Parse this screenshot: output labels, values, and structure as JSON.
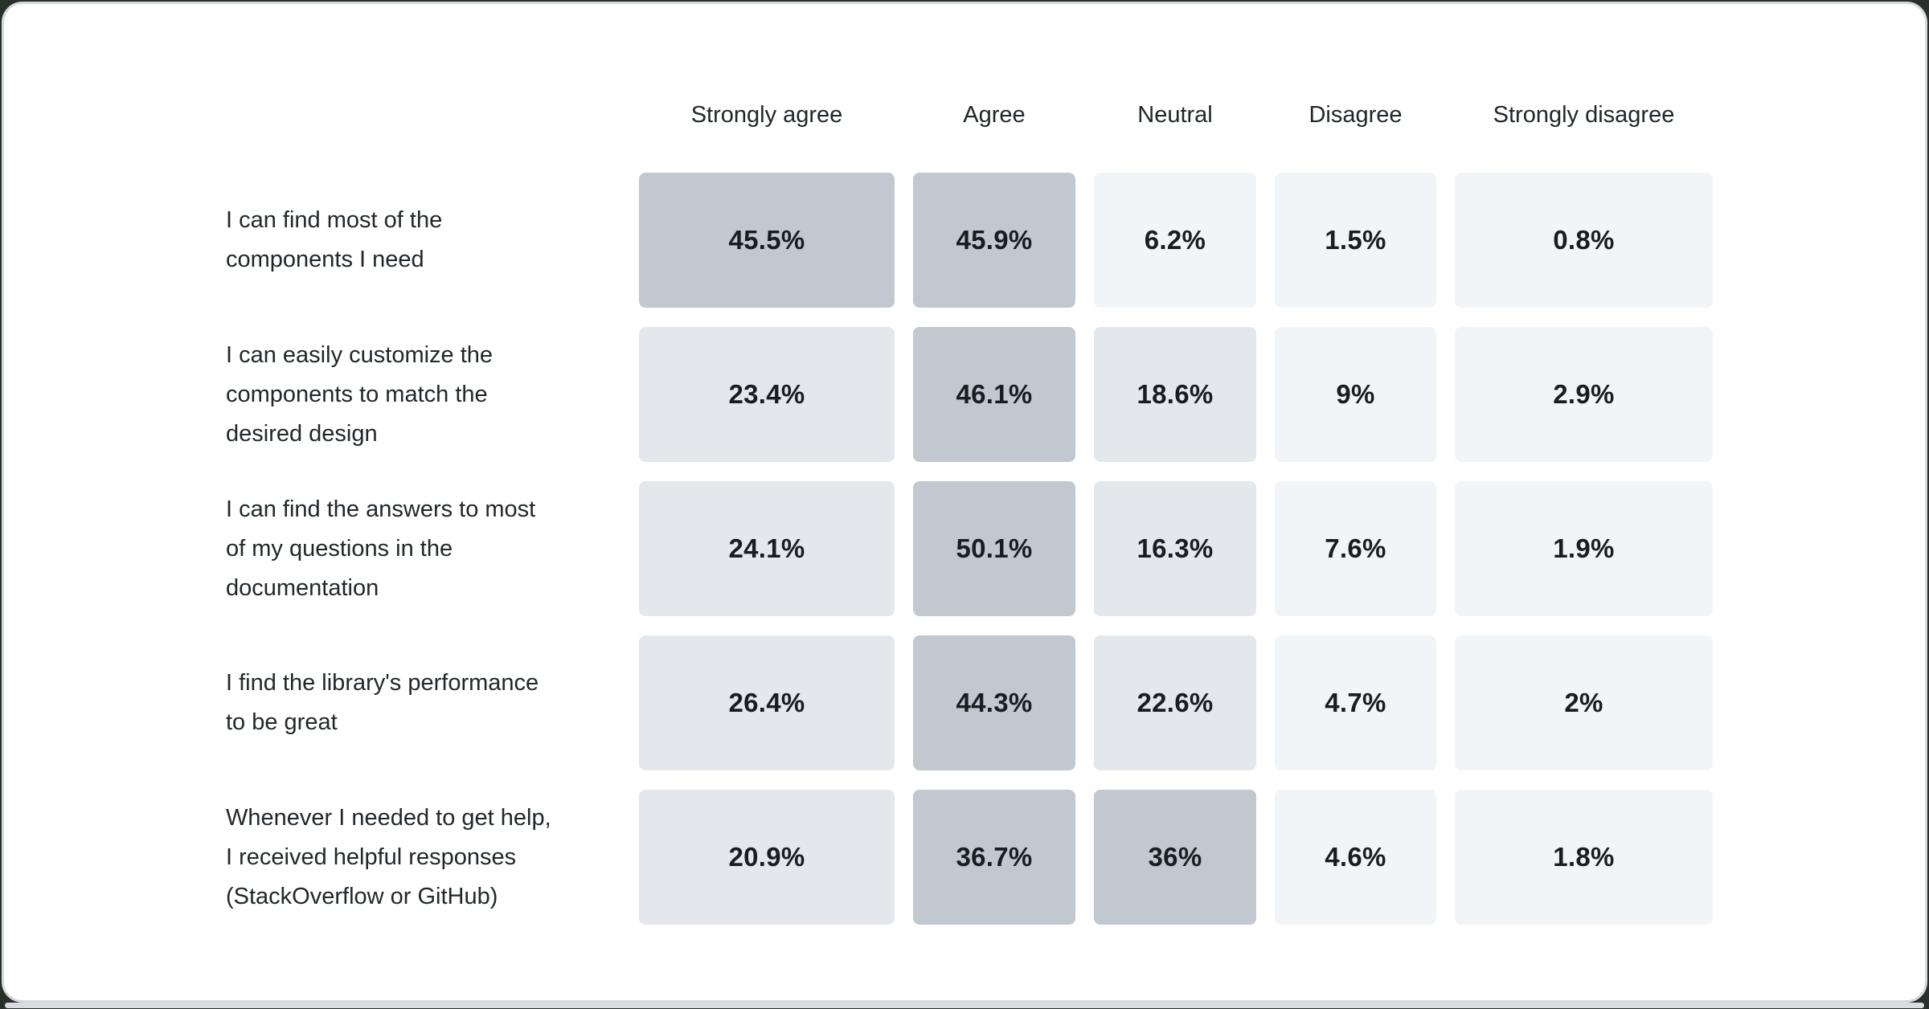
{
  "page": {
    "background_color": "#273029",
    "card_color": "#ffffff",
    "card_border_color": "#d6dadd",
    "scrollbar_color": "#d9dce0"
  },
  "chart_data": {
    "type": "heatmap",
    "title": "",
    "columns": [
      "Strongly agree",
      "Agree",
      "Neutral",
      "Disagree",
      "Strongly disagree"
    ],
    "rows": [
      {
        "label": "I can find most of the components I need",
        "label_lines": [
          "I can find most of the",
          "components I need"
        ],
        "values": [
          45.5,
          45.9,
          6.2,
          1.5,
          0.8
        ],
        "display": [
          "45.5%",
          "45.9%",
          "6.2%",
          "1.5%",
          "0.8%"
        ]
      },
      {
        "label": "I can easily customize the components to match the desired design",
        "label_lines": [
          "I can easily customize the",
          "components to match the",
          "desired design"
        ],
        "values": [
          23.4,
          46.1,
          18.6,
          9,
          2.9
        ],
        "display": [
          "23.4%",
          "46.1%",
          "18.6%",
          "9%",
          "2.9%"
        ]
      },
      {
        "label": "I can find the answers to most of my questions in the documentation",
        "label_lines": [
          "I can find the answers to most",
          "of my questions in the",
          "documentation"
        ],
        "values": [
          24.1,
          50.1,
          16.3,
          7.6,
          1.9
        ],
        "display": [
          "24.1%",
          "50.1%",
          "16.3%",
          "7.6%",
          "1.9%"
        ]
      },
      {
        "label": "I find the library's performance to be great",
        "label_lines": [
          "I find the library's performance",
          "to be great"
        ],
        "values": [
          26.4,
          44.3,
          22.6,
          4.7,
          2
        ],
        "display": [
          "26.4%",
          "44.3%",
          "22.6%",
          "4.7%",
          "2%"
        ]
      },
      {
        "label": "Whenever I needed to get help, I received helpful responses (StackOverflow or GitHub)",
        "label_lines": [
          "Whenever I needed to get help,",
          "I received helpful responses",
          "(StackOverflow or GitHub)"
        ],
        "values": [
          20.9,
          36.7,
          36,
          4.6,
          1.8
        ],
        "display": [
          "20.9%",
          "36.7%",
          "36%",
          "4.6%",
          "1.8%"
        ]
      }
    ],
    "color_scale": {
      "low": "#f2f5f8",
      "mid": "#e4e7eb",
      "high": "#c2c8cf",
      "thresholds": [
        10,
        30
      ]
    },
    "text_colors": {
      "header": "#21272a",
      "label": "#21272a",
      "value": "#181d21"
    },
    "legend_position": "none",
    "grid": "off",
    "xlabel": "",
    "ylabel": ""
  }
}
